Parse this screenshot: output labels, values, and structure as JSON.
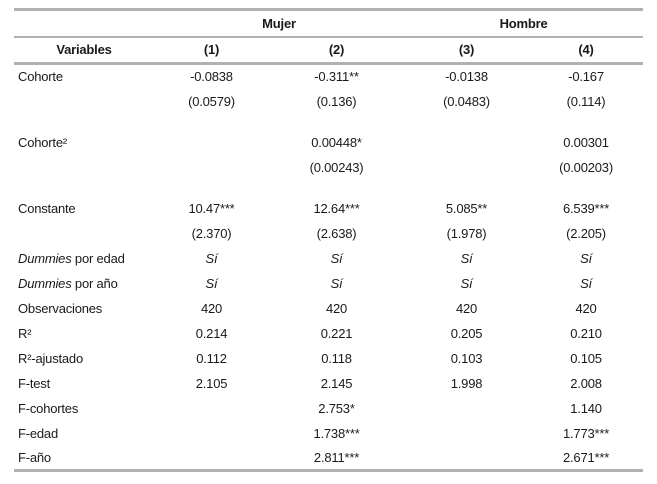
{
  "colors": {
    "rule": "#b1b1b5",
    "text": "#1a1a1a"
  },
  "table": {
    "group_headers": [
      {
        "label": "Mujer",
        "span": 2
      },
      {
        "label": "Hombre",
        "span": 2
      }
    ],
    "column_headers": [
      "Variables",
      "(1)",
      "(2)",
      "(3)",
      "(4)"
    ],
    "rows": [
      {
        "type": "coef",
        "label_parts": [
          {
            "text": "Cohorte",
            "italic": false
          }
        ],
        "cells": [
          "-0.0838",
          "-0.311**",
          "-0.0138",
          "-0.167"
        ],
        "cells_italic": false
      },
      {
        "type": "se",
        "label_parts": [],
        "cells": [
          "(0.0579)",
          "(0.136)",
          "(0.0483)",
          "(0.114)"
        ],
        "cells_italic": false
      },
      {
        "type": "spacer"
      },
      {
        "type": "coef",
        "label_parts": [
          {
            "text": "Cohorte²",
            "italic": false
          }
        ],
        "cells": [
          "",
          "0.00448*",
          "",
          "0.00301"
        ],
        "cells_italic": false
      },
      {
        "type": "se",
        "label_parts": [],
        "cells": [
          "",
          "(0.00243)",
          "",
          "(0.00203)"
        ],
        "cells_italic": false
      },
      {
        "type": "spacer"
      },
      {
        "type": "coef",
        "label_parts": [
          {
            "text": "Constante",
            "italic": false
          }
        ],
        "cells": [
          "10.47***",
          "12.64***",
          "5.085**",
          "6.539***"
        ],
        "cells_italic": false
      },
      {
        "type": "se",
        "label_parts": [],
        "cells": [
          "(2.370)",
          "(2.638)",
          "(1.978)",
          "(2.205)"
        ],
        "cells_italic": false
      },
      {
        "type": "stat",
        "label_parts": [
          {
            "text": "Dummies",
            "italic": true
          },
          {
            "text": " por edad",
            "italic": false
          }
        ],
        "cells": [
          "Sí",
          "Sí",
          "Sí",
          "Sí"
        ],
        "cells_italic": true
      },
      {
        "type": "stat",
        "label_parts": [
          {
            "text": "Dummies",
            "italic": true
          },
          {
            "text": " por año",
            "italic": false
          }
        ],
        "cells": [
          "Sí",
          "Sí",
          "Sí",
          "Sí"
        ],
        "cells_italic": true
      },
      {
        "type": "stat",
        "label_parts": [
          {
            "text": "Observaciones",
            "italic": false
          }
        ],
        "cells": [
          "420",
          "420",
          "420",
          "420"
        ],
        "cells_italic": false
      },
      {
        "type": "stat",
        "label_parts": [
          {
            "text": "R²",
            "italic": false
          }
        ],
        "cells": [
          "0.214",
          "0.221",
          "0.205",
          "0.210"
        ],
        "cells_italic": false
      },
      {
        "type": "stat",
        "label_parts": [
          {
            "text": "R²-ajustado",
            "italic": false
          }
        ],
        "cells": [
          "0.112",
          "0.118",
          "0.103",
          "0.105"
        ],
        "cells_italic": false
      },
      {
        "type": "stat",
        "label_parts": [
          {
            "text": "F-test",
            "italic": false
          }
        ],
        "cells": [
          "2.105",
          "2.145",
          "1.998",
          "2.008"
        ],
        "cells_italic": false
      },
      {
        "type": "stat",
        "label_parts": [
          {
            "text": "F-cohortes",
            "italic": false
          }
        ],
        "cells": [
          "",
          "2.753*",
          "",
          "1.140"
        ],
        "cells_italic": false
      },
      {
        "type": "stat",
        "label_parts": [
          {
            "text": "F-edad",
            "italic": false
          }
        ],
        "cells": [
          "",
          "1.738***",
          "",
          "1.773***"
        ],
        "cells_italic": false
      },
      {
        "type": "stat",
        "label_parts": [
          {
            "text": "F-año",
            "italic": false
          }
        ],
        "cells": [
          "",
          "2.811***",
          "",
          "2.671***"
        ],
        "cells_italic": false
      }
    ]
  }
}
